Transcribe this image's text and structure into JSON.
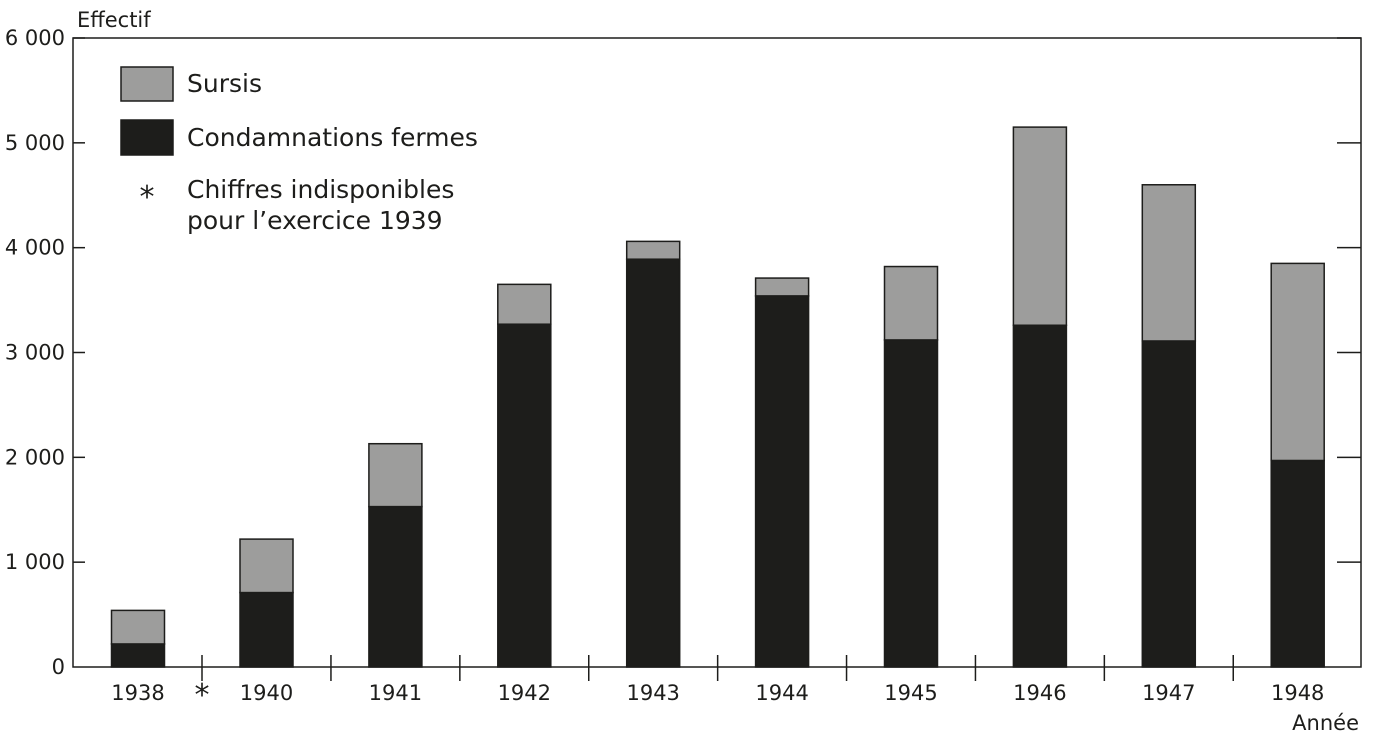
{
  "chart_data": {
    "type": "bar",
    "stacked": true,
    "categories": [
      "1938",
      "1940",
      "1941",
      "1942",
      "1943",
      "1944",
      "1945",
      "1946",
      "1947",
      "1948"
    ],
    "series": [
      {
        "name": "Condamnations fermes",
        "color": "#1d1d1b",
        "values": [
          220,
          710,
          1530,
          3270,
          3890,
          3540,
          3120,
          3260,
          3110,
          1970
        ]
      },
      {
        "name": "Sursis",
        "color": "#9d9d9c",
        "values": [
          320,
          510,
          600,
          380,
          170,
          170,
          700,
          1890,
          1490,
          1880
        ]
      }
    ],
    "ylabel": "Effectif",
    "xlabel": "Année",
    "ylim": [
      0,
      6000
    ],
    "yticks": [
      0,
      1000,
      2000,
      3000,
      4000,
      5000,
      6000
    ],
    "ytick_labels": [
      "0",
      "1 000",
      "2 000",
      "3 000",
      "4 000",
      "5 000",
      "6 000"
    ],
    "gap_marker": "*",
    "legend": {
      "placement": "top-left",
      "entries": [
        {
          "label": "Sursis",
          "color": "#9d9d9c"
        },
        {
          "label": "Condamnations fermes",
          "color": "#1d1d1b"
        }
      ],
      "note_symbol": "*",
      "note_lines": [
        "Chiffres indisponibles",
        "pour l’exercice 1939"
      ]
    }
  }
}
